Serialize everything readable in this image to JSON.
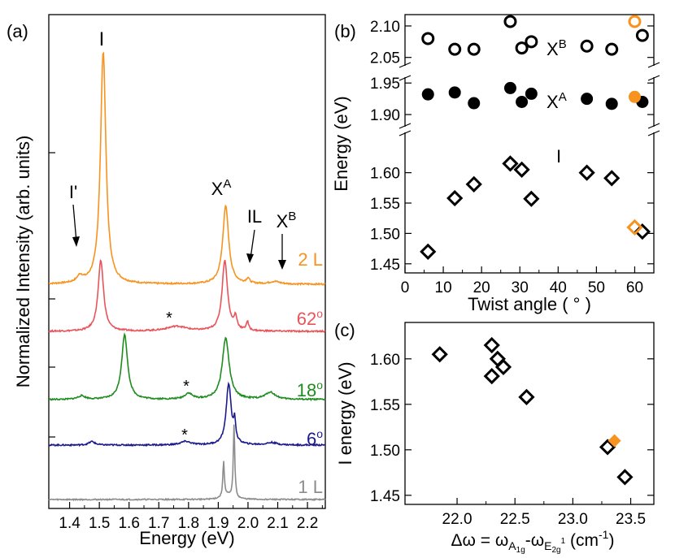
{
  "colors": {
    "orange": "#f7931e",
    "red": "#e8545a",
    "green": "#1e8c1e",
    "blue": "#1a1a8c",
    "gray": "#8c8c8c",
    "black": "#000000"
  },
  "chart_data": [
    {
      "panel": "(a)",
      "type": "line",
      "xlabel": "Energy (eV)",
      "ylabel": "Normalized Intensity (arb. units)",
      "xlim": [
        1.33,
        2.26
      ],
      "xticks": [
        "1.4",
        "1.5",
        "1.6",
        "1.7",
        "1.8",
        "1.9",
        "2.0",
        "2.1",
        "2.2"
      ],
      "series": [
        {
          "name": "2 L",
          "color": "#f7931e",
          "offset": 4.0,
          "peaks": [
            [
              1.435,
              0.05,
              0.012
            ],
            [
              1.513,
              1.85,
              0.011
            ],
            [
              1.925,
              0.62,
              0.012
            ],
            [
              2.0,
              0.04,
              0.006
            ],
            [
              2.09,
              0.02,
              0.02
            ]
          ]
        },
        {
          "name": "62°",
          "color": "#e8545a",
          "offset": 3.0,
          "peaks": [
            [
              1.505,
              0.58,
              0.011
            ],
            [
              1.76,
              0.04,
              0.04
            ],
            [
              1.922,
              0.58,
              0.011
            ],
            [
              1.958,
              0.1,
              0.006
            ],
            [
              1.998,
              0.07,
              0.005
            ]
          ]
        },
        {
          "name": "18°",
          "color": "#1e8c1e",
          "offset": 2.0,
          "peaks": [
            [
              1.44,
              0.03,
              0.015
            ],
            [
              1.585,
              0.55,
              0.012
            ],
            [
              1.8,
              0.05,
              0.015
            ],
            [
              1.925,
              0.52,
              0.014
            ],
            [
              2.075,
              0.06,
              0.02
            ]
          ]
        },
        {
          "name": "6°",
          "color": "#1a1a8c",
          "offset": 1.0,
          "peaks": [
            [
              1.475,
              0.03,
              0.012
            ],
            [
              1.79,
              0.03,
              0.02
            ],
            [
              1.935,
              0.52,
              0.01
            ],
            [
              1.955,
              0.17,
              0.004
            ],
            [
              2.08,
              0.02,
              0.02
            ]
          ]
        },
        {
          "name": "1 L",
          "color": "#8c8c8c",
          "offset": 0.0,
          "peaks": [
            [
              1.918,
              0.35,
              0.003
            ],
            [
              1.953,
              0.72,
              0.003
            ],
            [
              1.93,
              0.04,
              0.02
            ]
          ]
        }
      ],
      "annotations": {
        "peak_I": "I",
        "peak_Iprime": "I'",
        "peak_XA_base": "X",
        "peak_XA_sup": "A",
        "peak_IL": "IL",
        "peak_XB_base": "X",
        "peak_XB_sup": "B",
        "star": "*"
      },
      "curve_labels": {
        "l2": "2 L",
        "t62_num": "62",
        "t18_num": "18",
        "t6_num": "6",
        "deg": "o",
        "l1": "1 L"
      }
    },
    {
      "panel": "(b)",
      "type": "scatter",
      "xlabel": "Twist angle ( ° )",
      "ylabel": "Energy (eV)",
      "xlim": [
        0,
        65
      ],
      "xticks": [
        "0",
        "10",
        "20",
        "30",
        "40",
        "50",
        "60"
      ],
      "y_segments": {
        "upper": {
          "ylim": [
            2.038,
            2.118
          ],
          "ticks": [
            "2.10",
            "2.05"
          ]
        },
        "middle": {
          "ylim": [
            1.882,
            1.958
          ],
          "ticks": [
            "1.95",
            "1.90"
          ]
        },
        "lower": {
          "ylim": [
            1.435,
            1.665
          ],
          "ticks": [
            "1.60",
            "1.55",
            "1.50",
            "1.45"
          ]
        }
      },
      "series": [
        {
          "name": "XB",
          "marker": "open-circle",
          "x": [
            6,
            13,
            18,
            27.5,
            30.5,
            33,
            47.5,
            54,
            62
          ],
          "y": [
            2.08,
            2.063,
            2.063,
            2.107,
            2.065,
            2.075,
            2.068,
            2.063,
            2.085
          ],
          "highlight": {
            "x": 60,
            "y": 2.107,
            "color": "#f7931e"
          }
        },
        {
          "name": "XA",
          "marker": "filled-circle",
          "x": [
            6,
            13,
            18,
            27.5,
            30.5,
            33,
            47.5,
            54,
            62
          ],
          "y": [
            1.932,
            1.935,
            1.918,
            1.942,
            1.92,
            1.933,
            1.925,
            1.917,
            1.92
          ],
          "highlight": {
            "x": 60,
            "y": 1.928,
            "color": "#f7931e"
          }
        },
        {
          "name": "I",
          "marker": "open-diamond",
          "x": [
            6,
            13,
            18,
            27.5,
            30.5,
            33,
            47.5,
            54,
            62
          ],
          "y": [
            1.47,
            1.558,
            1.581,
            1.615,
            1.605,
            1.557,
            1.6,
            1.591,
            1.503
          ],
          "highlight": {
            "x": 60,
            "y": 1.51,
            "color": "#f7931e"
          }
        }
      ],
      "labels": {
        "xb_base": "X",
        "xb_sup": "B",
        "xa_base": "X",
        "xa_sup": "A",
        "i": "I"
      }
    },
    {
      "panel": "(c)",
      "type": "scatter",
      "xlabel_parts": {
        "lead": "Δω = ω",
        "sub1": "A",
        "sub1b": "1g",
        "mid": "-ω",
        "sub2": "E",
        "sub2b": "2g",
        "sup2": "1",
        "tail": " (cm",
        "exp": "-1",
        "close": ")"
      },
      "ylabel": "I energy (eV)",
      "xlim": [
        21.55,
        23.7
      ],
      "ylim": [
        1.44,
        1.64
      ],
      "xticks": [
        "22.0",
        "22.5",
        "23.0",
        "23.5"
      ],
      "yticks": [
        "1.60",
        "1.55",
        "1.50",
        "1.45"
      ],
      "series": [
        {
          "name": "I",
          "marker": "open-diamond",
          "x": [
            21.85,
            22.3,
            22.3,
            22.35,
            22.4,
            22.6,
            23.3,
            23.45
          ],
          "y": [
            1.605,
            1.615,
            1.581,
            1.6,
            1.591,
            1.558,
            1.503,
            1.47
          ],
          "highlight": {
            "x": 23.36,
            "y": 1.51,
            "color": "#f7931e"
          }
        }
      ]
    }
  ],
  "panel_labels": {
    "a": "(a)",
    "b": "(b)",
    "c": "(c)"
  }
}
